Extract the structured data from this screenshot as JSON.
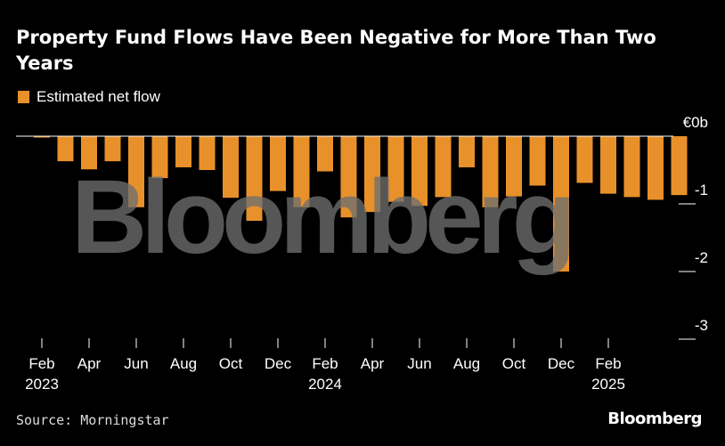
{
  "title": "Property Fund Flows Have Been Negative for More Than Two Years",
  "legend": {
    "label": "Estimated net flow",
    "color": "#e8912a"
  },
  "watermark": "Bloomberg",
  "source": "Source: Morningstar",
  "brand": "Bloomberg",
  "chart_data": {
    "type": "bar",
    "series": [
      {
        "name": "Estimated net flow",
        "values": [
          -0.02,
          -0.37,
          -0.49,
          -0.37,
          -1.05,
          -0.62,
          -0.46,
          -0.5,
          -0.91,
          -1.25,
          -0.81,
          -1.05,
          -0.52,
          -1.2,
          -1.12,
          -0.97,
          -1.03,
          -0.9,
          -0.46,
          -1.05,
          -0.89,
          -0.73,
          -2.0,
          -0.69,
          -0.85,
          -0.9,
          -0.94,
          -0.87
        ]
      }
    ],
    "x_tick_labels": [
      {
        "label": "Feb",
        "year": "2023"
      },
      {
        "label": "Apr",
        "year": ""
      },
      {
        "label": "Jun",
        "year": ""
      },
      {
        "label": "Aug",
        "year": ""
      },
      {
        "label": "Oct",
        "year": ""
      },
      {
        "label": "Dec",
        "year": ""
      },
      {
        "label": "Feb",
        "year": "2024"
      },
      {
        "label": "Apr",
        "year": ""
      },
      {
        "label": "Jun",
        "year": ""
      },
      {
        "label": "Aug",
        "year": ""
      },
      {
        "label": "Oct",
        "year": ""
      },
      {
        "label": "Dec",
        "year": ""
      },
      {
        "label": "Feb",
        "year": "2025"
      }
    ],
    "y_ticks": [
      {
        "value": 0,
        "label": "€0b"
      },
      {
        "value": -1,
        "label": "-1"
      },
      {
        "value": -2,
        "label": "-2"
      },
      {
        "value": -3,
        "label": "-3"
      }
    ],
    "ylim": [
      -3,
      0
    ],
    "y_axis_position": "right",
    "grid": false
  }
}
